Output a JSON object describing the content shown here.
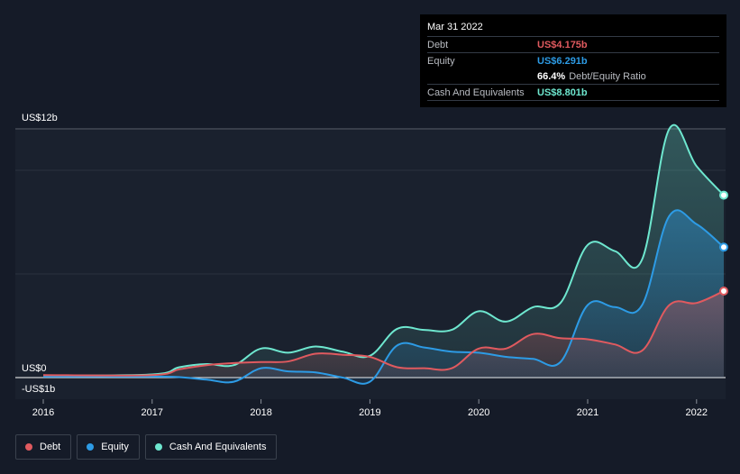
{
  "chart_data": {
    "type": "area",
    "y_tick_labels": [
      "US$12b",
      "US$0",
      "-US$1b"
    ],
    "ylim": [
      -1,
      12
    ],
    "xlim": [
      2016,
      2022.25
    ],
    "x_ticks": [
      "2016",
      "2017",
      "2018",
      "2019",
      "2020",
      "2021",
      "2022"
    ],
    "grid": true,
    "legend_position": "bottom-left",
    "series": [
      {
        "name": "Debt",
        "color": "#e05a5f",
        "x": [
          2016.0,
          2017.0,
          2017.25,
          2017.5,
          2017.75,
          2018.0,
          2018.25,
          2018.5,
          2018.75,
          2019.0,
          2019.25,
          2019.5,
          2019.75,
          2020.0,
          2020.25,
          2020.5,
          2020.75,
          2021.0,
          2021.25,
          2021.5,
          2021.75,
          2022.0,
          2022.25
        ],
        "values": [
          0.12,
          0.12,
          0.4,
          0.6,
          0.7,
          0.75,
          0.78,
          1.15,
          1.1,
          1.0,
          0.5,
          0.45,
          0.45,
          1.4,
          1.4,
          2.1,
          1.9,
          1.85,
          1.6,
          1.3,
          3.5,
          3.6,
          4.175
        ]
      },
      {
        "name": "Equity",
        "color": "#2d9be5",
        "x": [
          2016.0,
          2017.0,
          2017.25,
          2017.5,
          2017.75,
          2018.0,
          2018.25,
          2018.5,
          2018.75,
          2019.0,
          2019.25,
          2019.5,
          2019.75,
          2020.0,
          2020.25,
          2020.5,
          2020.75,
          2021.0,
          2021.25,
          2021.5,
          2021.75,
          2022.0,
          2022.25
        ],
        "values": [
          0.05,
          0.05,
          0.02,
          -0.1,
          -0.2,
          0.45,
          0.3,
          0.25,
          0.0,
          -0.2,
          1.55,
          1.45,
          1.25,
          1.2,
          1.0,
          0.9,
          0.75,
          3.5,
          3.4,
          3.5,
          7.8,
          7.4,
          6.291
        ]
      },
      {
        "name": "Cash And Equivalents",
        "color": "#6ee7cf",
        "x": [
          2016.0,
          2017.0,
          2017.25,
          2017.5,
          2017.75,
          2018.0,
          2018.25,
          2018.5,
          2018.75,
          2019.0,
          2019.25,
          2019.5,
          2019.75,
          2020.0,
          2020.25,
          2020.5,
          2020.75,
          2021.0,
          2021.25,
          2021.5,
          2021.75,
          2022.0,
          2022.25
        ],
        "values": [
          0.1,
          0.15,
          0.5,
          0.65,
          0.6,
          1.4,
          1.2,
          1.5,
          1.25,
          1.05,
          2.35,
          2.3,
          2.3,
          3.2,
          2.7,
          3.4,
          3.6,
          6.4,
          6.1,
          5.7,
          12.0,
          10.2,
          8.801
        ]
      }
    ]
  },
  "tooltip": {
    "date": "Mar 31 2022",
    "debt_label": "Debt",
    "debt_value": "US$4.175b",
    "equity_label": "Equity",
    "equity_value": "US$6.291b",
    "ratio_value": "66.4%",
    "ratio_label": "Debt/Equity Ratio",
    "cash_label": "Cash And Equivalents",
    "cash_value": "US$8.801b"
  },
  "legend": {
    "debt": "Debt",
    "equity": "Equity",
    "cash": "Cash And Equivalents"
  },
  "colors": {
    "background": "#151b28",
    "plot_background": "#1a212e",
    "debt": "#e05a5f",
    "equity": "#2d9be5",
    "cash": "#6ee7cf"
  }
}
